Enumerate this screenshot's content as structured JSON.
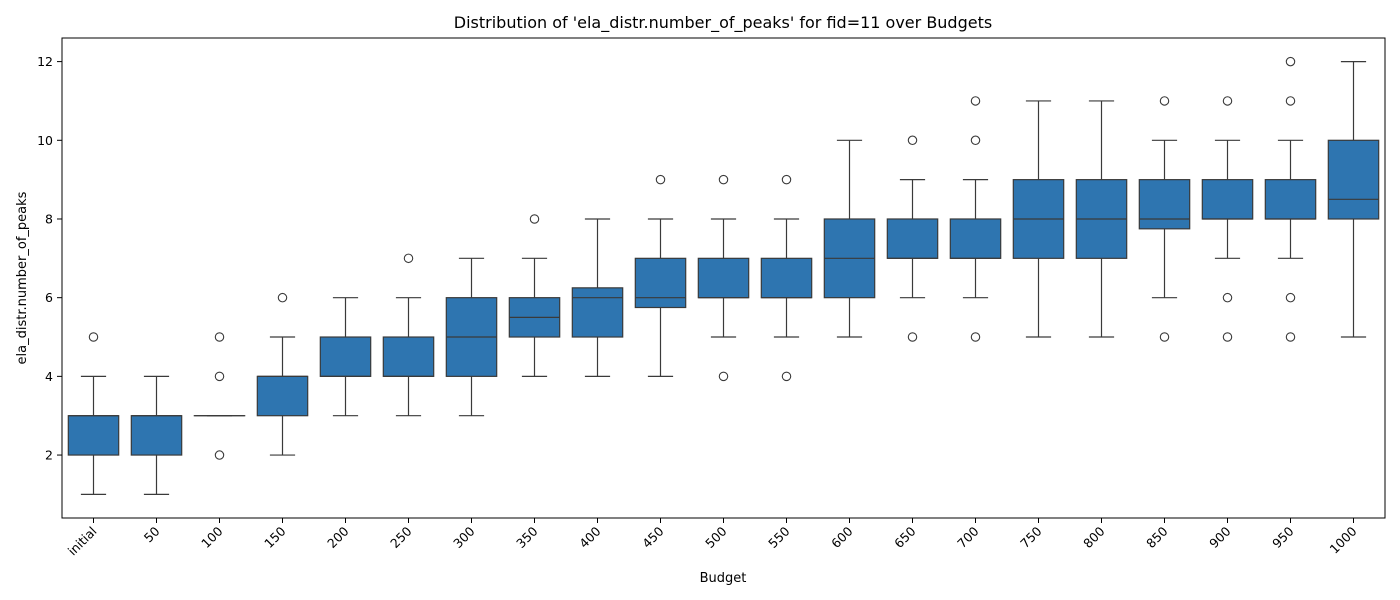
{
  "chart_data": {
    "type": "box",
    "title": "Distribution of 'ela_distr.number_of_peaks' for fid=11 over Budgets",
    "xlabel": "Budget",
    "ylabel": "ela_distr.number_of_peaks",
    "ylim": [
      0.4,
      12.6
    ],
    "yticks": [
      2,
      4,
      6,
      8,
      10,
      12
    ],
    "grid": false,
    "colors": {
      "box_fill": "#2e75b0",
      "box_edge": "#3a3a3a",
      "outlier_edge": "#3a3a3a"
    },
    "categories": [
      "initial",
      "50",
      "100",
      "150",
      "200",
      "250",
      "300",
      "350",
      "400",
      "450",
      "500",
      "550",
      "600",
      "650",
      "700",
      "750",
      "800",
      "850",
      "900",
      "950",
      "1000"
    ],
    "boxes": [
      {
        "q1": 2,
        "median": 3,
        "q3": 3,
        "whisker_low": 1,
        "whisker_high": 4,
        "outliers": [
          5
        ]
      },
      {
        "q1": 2,
        "median": 3,
        "q3": 3,
        "whisker_low": 1,
        "whisker_high": 4,
        "outliers": []
      },
      {
        "q1": 3,
        "median": 3,
        "q3": 3,
        "whisker_low": 3,
        "whisker_high": 3,
        "outliers": [
          2,
          4,
          5
        ]
      },
      {
        "q1": 3,
        "median": 4,
        "q3": 4,
        "whisker_low": 2,
        "whisker_high": 5,
        "outliers": [
          6
        ]
      },
      {
        "q1": 4,
        "median": 4,
        "q3": 5,
        "whisker_low": 3,
        "whisker_high": 6,
        "outliers": []
      },
      {
        "q1": 4,
        "median": 4,
        "q3": 5,
        "whisker_low": 3,
        "whisker_high": 6,
        "outliers": [
          7
        ]
      },
      {
        "q1": 4,
        "median": 5,
        "q3": 6,
        "whisker_low": 3,
        "whisker_high": 7,
        "outliers": []
      },
      {
        "q1": 5,
        "median": 5.5,
        "q3": 6,
        "whisker_low": 4,
        "whisker_high": 7,
        "outliers": [
          8
        ]
      },
      {
        "q1": 5,
        "median": 6,
        "q3": 6.25,
        "whisker_low": 4,
        "whisker_high": 8,
        "outliers": []
      },
      {
        "q1": 5.75,
        "median": 6,
        "q3": 7,
        "whisker_low": 4,
        "whisker_high": 8,
        "outliers": [
          9
        ]
      },
      {
        "q1": 6,
        "median": 6,
        "q3": 7,
        "whisker_low": 5,
        "whisker_high": 8,
        "outliers": [
          4,
          9
        ]
      },
      {
        "q1": 6,
        "median": 6,
        "q3": 7,
        "whisker_low": 5,
        "whisker_high": 8,
        "outliers": [
          4,
          9
        ]
      },
      {
        "q1": 6,
        "median": 7,
        "q3": 8,
        "whisker_low": 5,
        "whisker_high": 10,
        "outliers": []
      },
      {
        "q1": 7,
        "median": 7,
        "q3": 8,
        "whisker_low": 6,
        "whisker_high": 9,
        "outliers": [
          5,
          10
        ]
      },
      {
        "q1": 7,
        "median": 7,
        "q3": 8,
        "whisker_low": 6,
        "whisker_high": 9,
        "outliers": [
          5,
          10,
          11
        ]
      },
      {
        "q1": 7,
        "median": 8,
        "q3": 9,
        "whisker_low": 5,
        "whisker_high": 11,
        "outliers": []
      },
      {
        "q1": 7,
        "median": 8,
        "q3": 9,
        "whisker_low": 5,
        "whisker_high": 11,
        "outliers": []
      },
      {
        "q1": 7.75,
        "median": 8,
        "q3": 9,
        "whisker_low": 6,
        "whisker_high": 10,
        "outliers": [
          5,
          11
        ]
      },
      {
        "q1": 8,
        "median": 8,
        "q3": 9,
        "whisker_low": 7,
        "whisker_high": 10,
        "outliers": [
          5,
          6,
          11
        ]
      },
      {
        "q1": 8,
        "median": 8,
        "q3": 9,
        "whisker_low": 7,
        "whisker_high": 10,
        "outliers": [
          5,
          6,
          11,
          12
        ]
      },
      {
        "q1": 8,
        "median": 8.5,
        "q3": 10,
        "whisker_low": 5,
        "whisker_high": 12,
        "outliers": []
      }
    ]
  }
}
